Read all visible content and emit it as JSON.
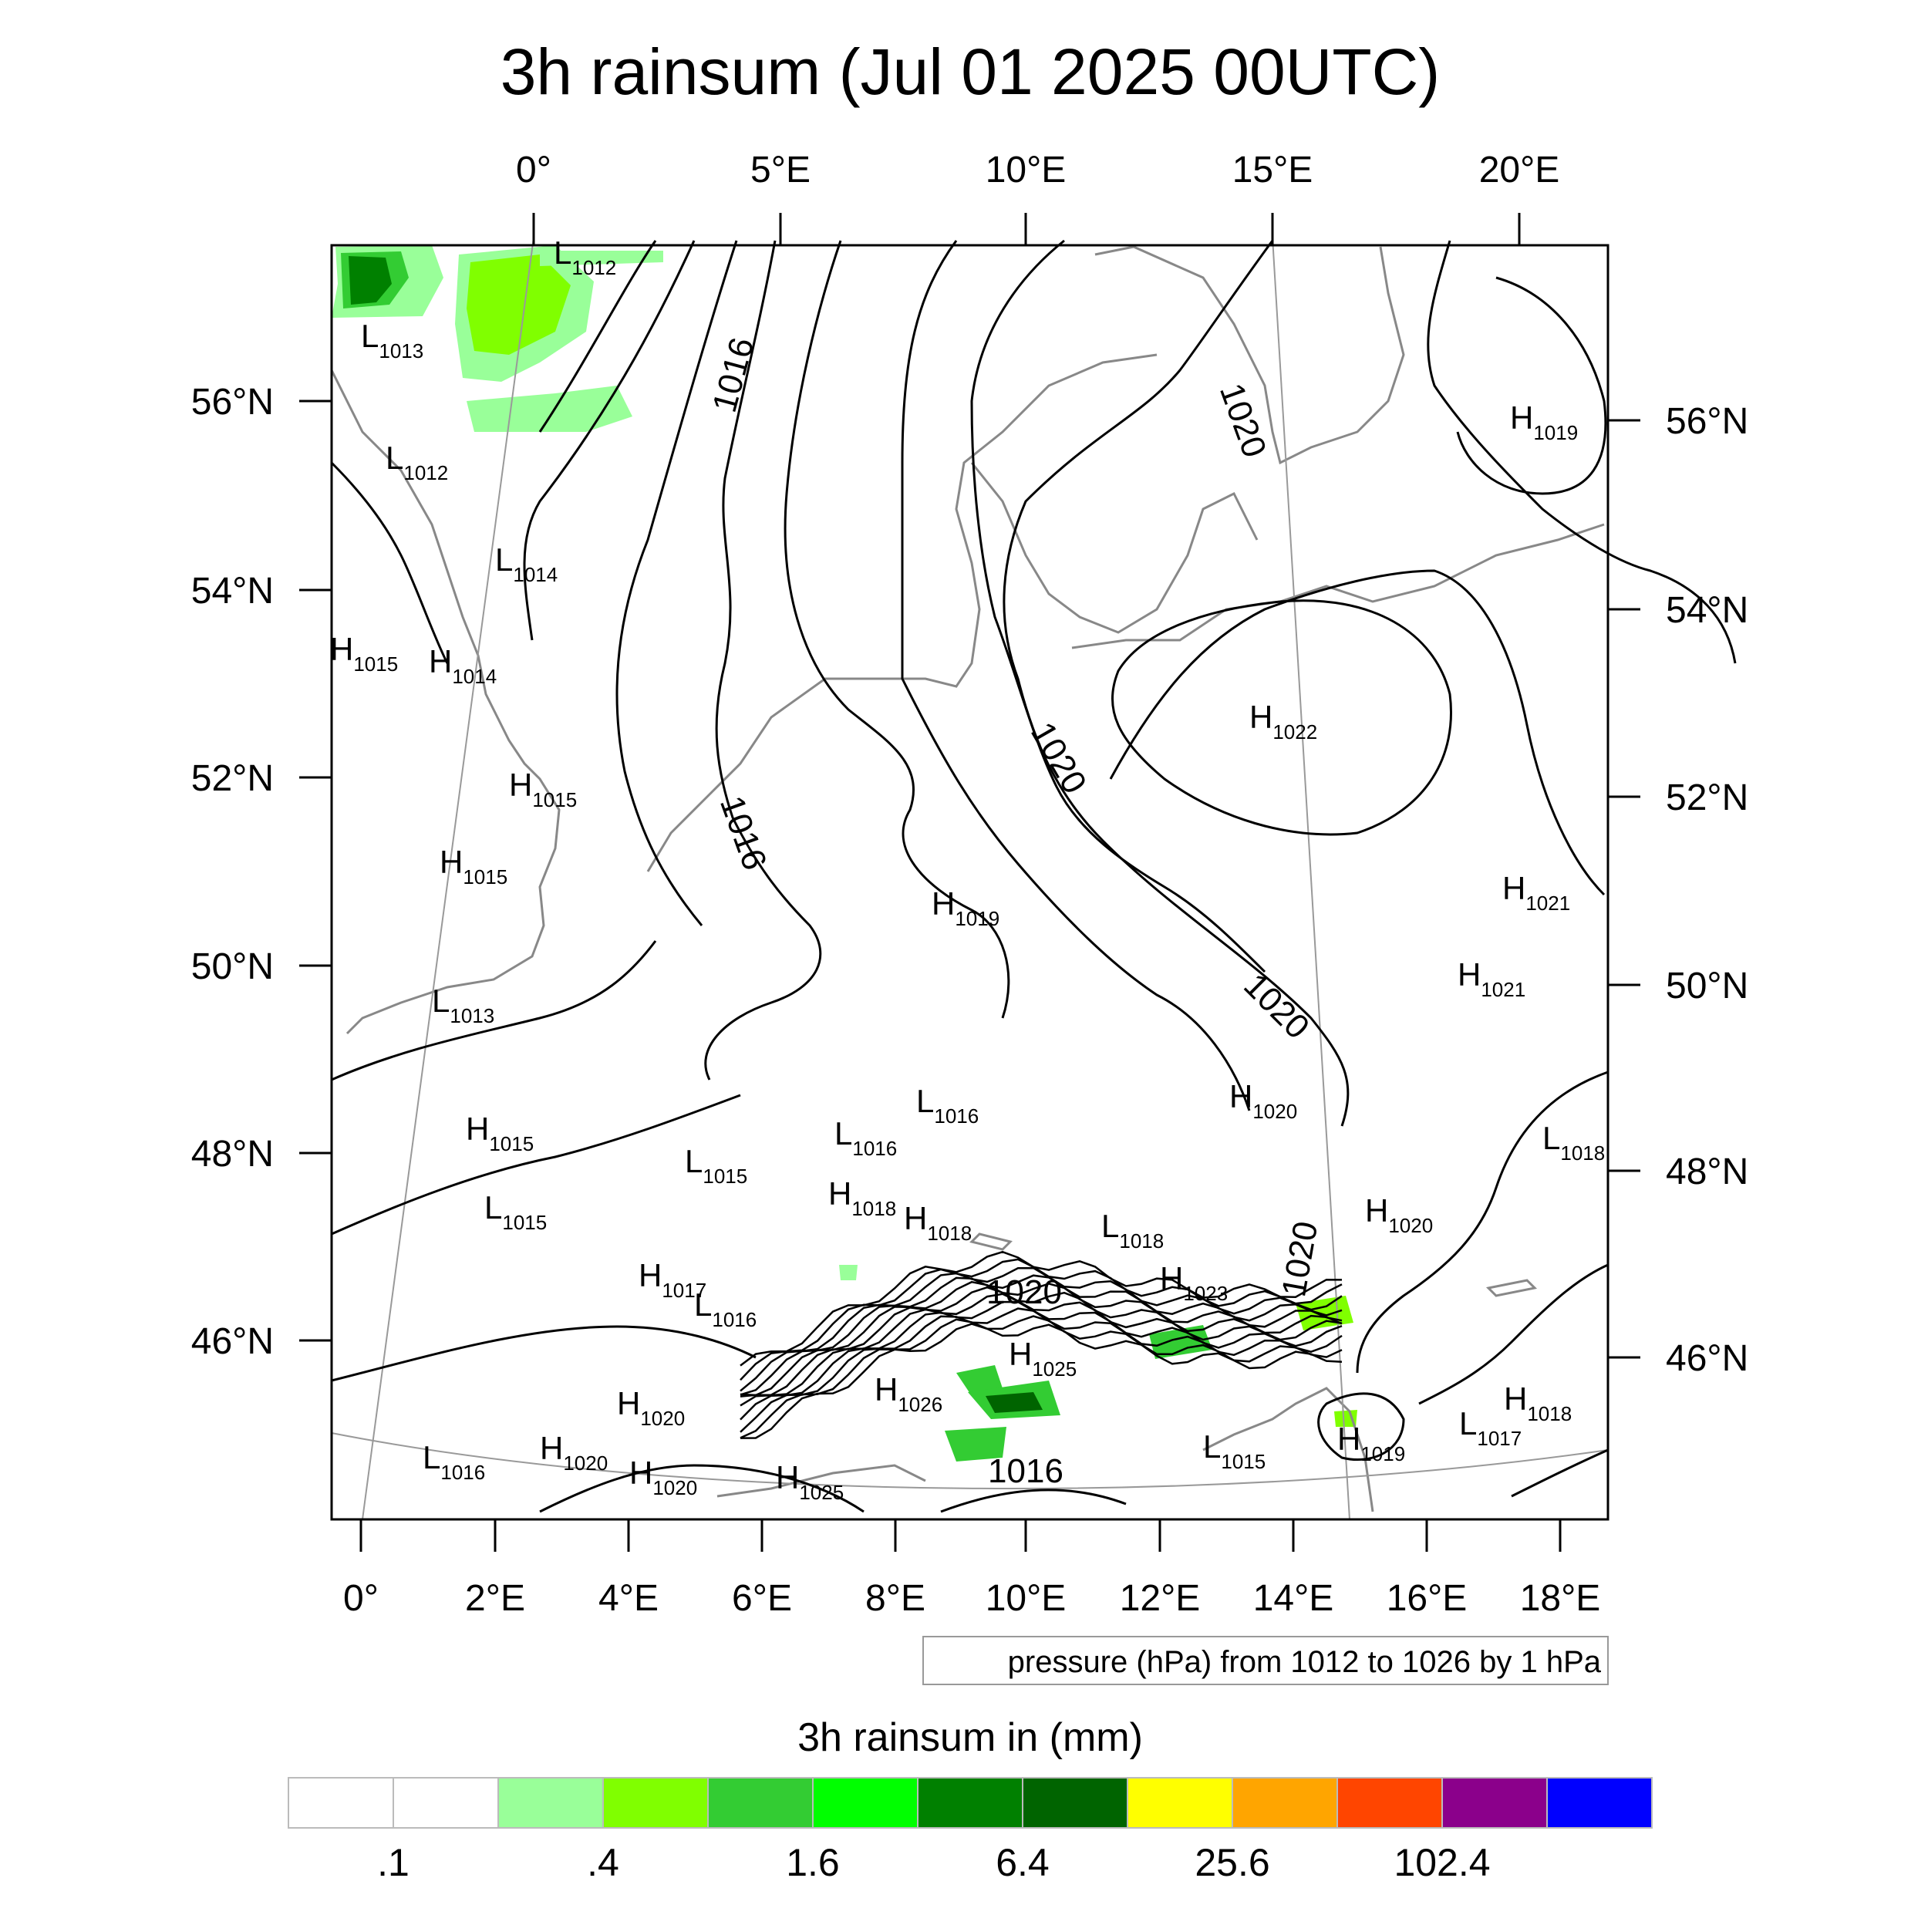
{
  "title": "3h rainsum (Jul 01 2025 00UTC)",
  "top_lon_labels": [
    "0°",
    "5°E",
    "10°E",
    "15°E",
    "20°E"
  ],
  "bottom_lon_labels": [
    "0°",
    "2°E",
    "4°E",
    "6°E",
    "8°E",
    "10°E",
    "12°E",
    "14°E",
    "16°E",
    "18°E"
  ],
  "left_lat_labels": [
    "56°N",
    "54°N",
    "52°N",
    "50°N",
    "48°N",
    "46°N"
  ],
  "right_lat_labels": [
    "56°N",
    "54°N",
    "52°N",
    "50°N",
    "48°N",
    "46°N"
  ],
  "pressure_centers": [
    {
      "t": "L",
      "v": "1012"
    },
    {
      "t": "L",
      "v": "1013"
    },
    {
      "t": "L",
      "v": "1012"
    },
    {
      "t": "L",
      "v": "1014"
    },
    {
      "t": "H",
      "v": "1015"
    },
    {
      "t": "H",
      "v": "1014"
    },
    {
      "t": "H",
      "v": "1015"
    },
    {
      "t": "H",
      "v": "1015"
    },
    {
      "t": "L",
      "v": "1013"
    },
    {
      "t": "H",
      "v": "1015"
    },
    {
      "t": "L",
      "v": "1015"
    },
    {
      "t": "L",
      "v": "1015"
    },
    {
      "t": "H",
      "v": "1017"
    },
    {
      "t": "L",
      "v": "1016"
    },
    {
      "t": "H",
      "v": "1020"
    },
    {
      "t": "H",
      "v": "1020"
    },
    {
      "t": "H",
      "v": "1020"
    },
    {
      "t": "L",
      "v": "1016"
    },
    {
      "t": "H",
      "v": "1025"
    },
    {
      "t": "H",
      "v": "1026"
    },
    {
      "t": "H",
      "v": "1025"
    },
    {
      "t": "L",
      "v": "1016"
    },
    {
      "t": "L",
      "v": "1016"
    },
    {
      "t": "H",
      "v": "1018"
    },
    {
      "t": "H",
      "v": "1018"
    },
    {
      "t": "H",
      "v": "1019"
    },
    {
      "t": "L",
      "v": "1018"
    },
    {
      "t": "H",
      "v": "1023"
    },
    {
      "t": "H",
      "v": "1020"
    },
    {
      "t": "H",
      "v": "1020"
    },
    {
      "t": "L",
      "v": "1015"
    },
    {
      "t": "H",
      "v": "1019"
    },
    {
      "t": "L",
      "v": "1017"
    },
    {
      "t": "H",
      "v": "1018"
    },
    {
      "t": "H",
      "v": "1022"
    },
    {
      "t": "H",
      "v": "1019"
    },
    {
      "t": "H",
      "v": "1021"
    },
    {
      "t": "H",
      "v": "1021"
    },
    {
      "t": "L",
      "v": "1018"
    }
  ],
  "contour_labels": [
    "1016",
    "1016",
    "1020",
    "1020",
    "1020",
    "1020",
    "1020",
    "1016"
  ],
  "note": "pressure (hPa) from 1012 to 1026 by 1 hPa",
  "colorbar": {
    "title": "3h rainsum in (mm)",
    "colors": [
      "#ffffff",
      "#ffffff",
      "#99ff99",
      "#80ff00",
      "#33cc33",
      "#00ff00",
      "#008000",
      "#006400",
      "#ffff00",
      "#ffa500",
      "#ff4500",
      "#8b008b",
      "#0000ff"
    ],
    "labels": [
      ".1",
      ".4",
      "1.6",
      "6.4",
      "25.6",
      "102.4"
    ]
  }
}
